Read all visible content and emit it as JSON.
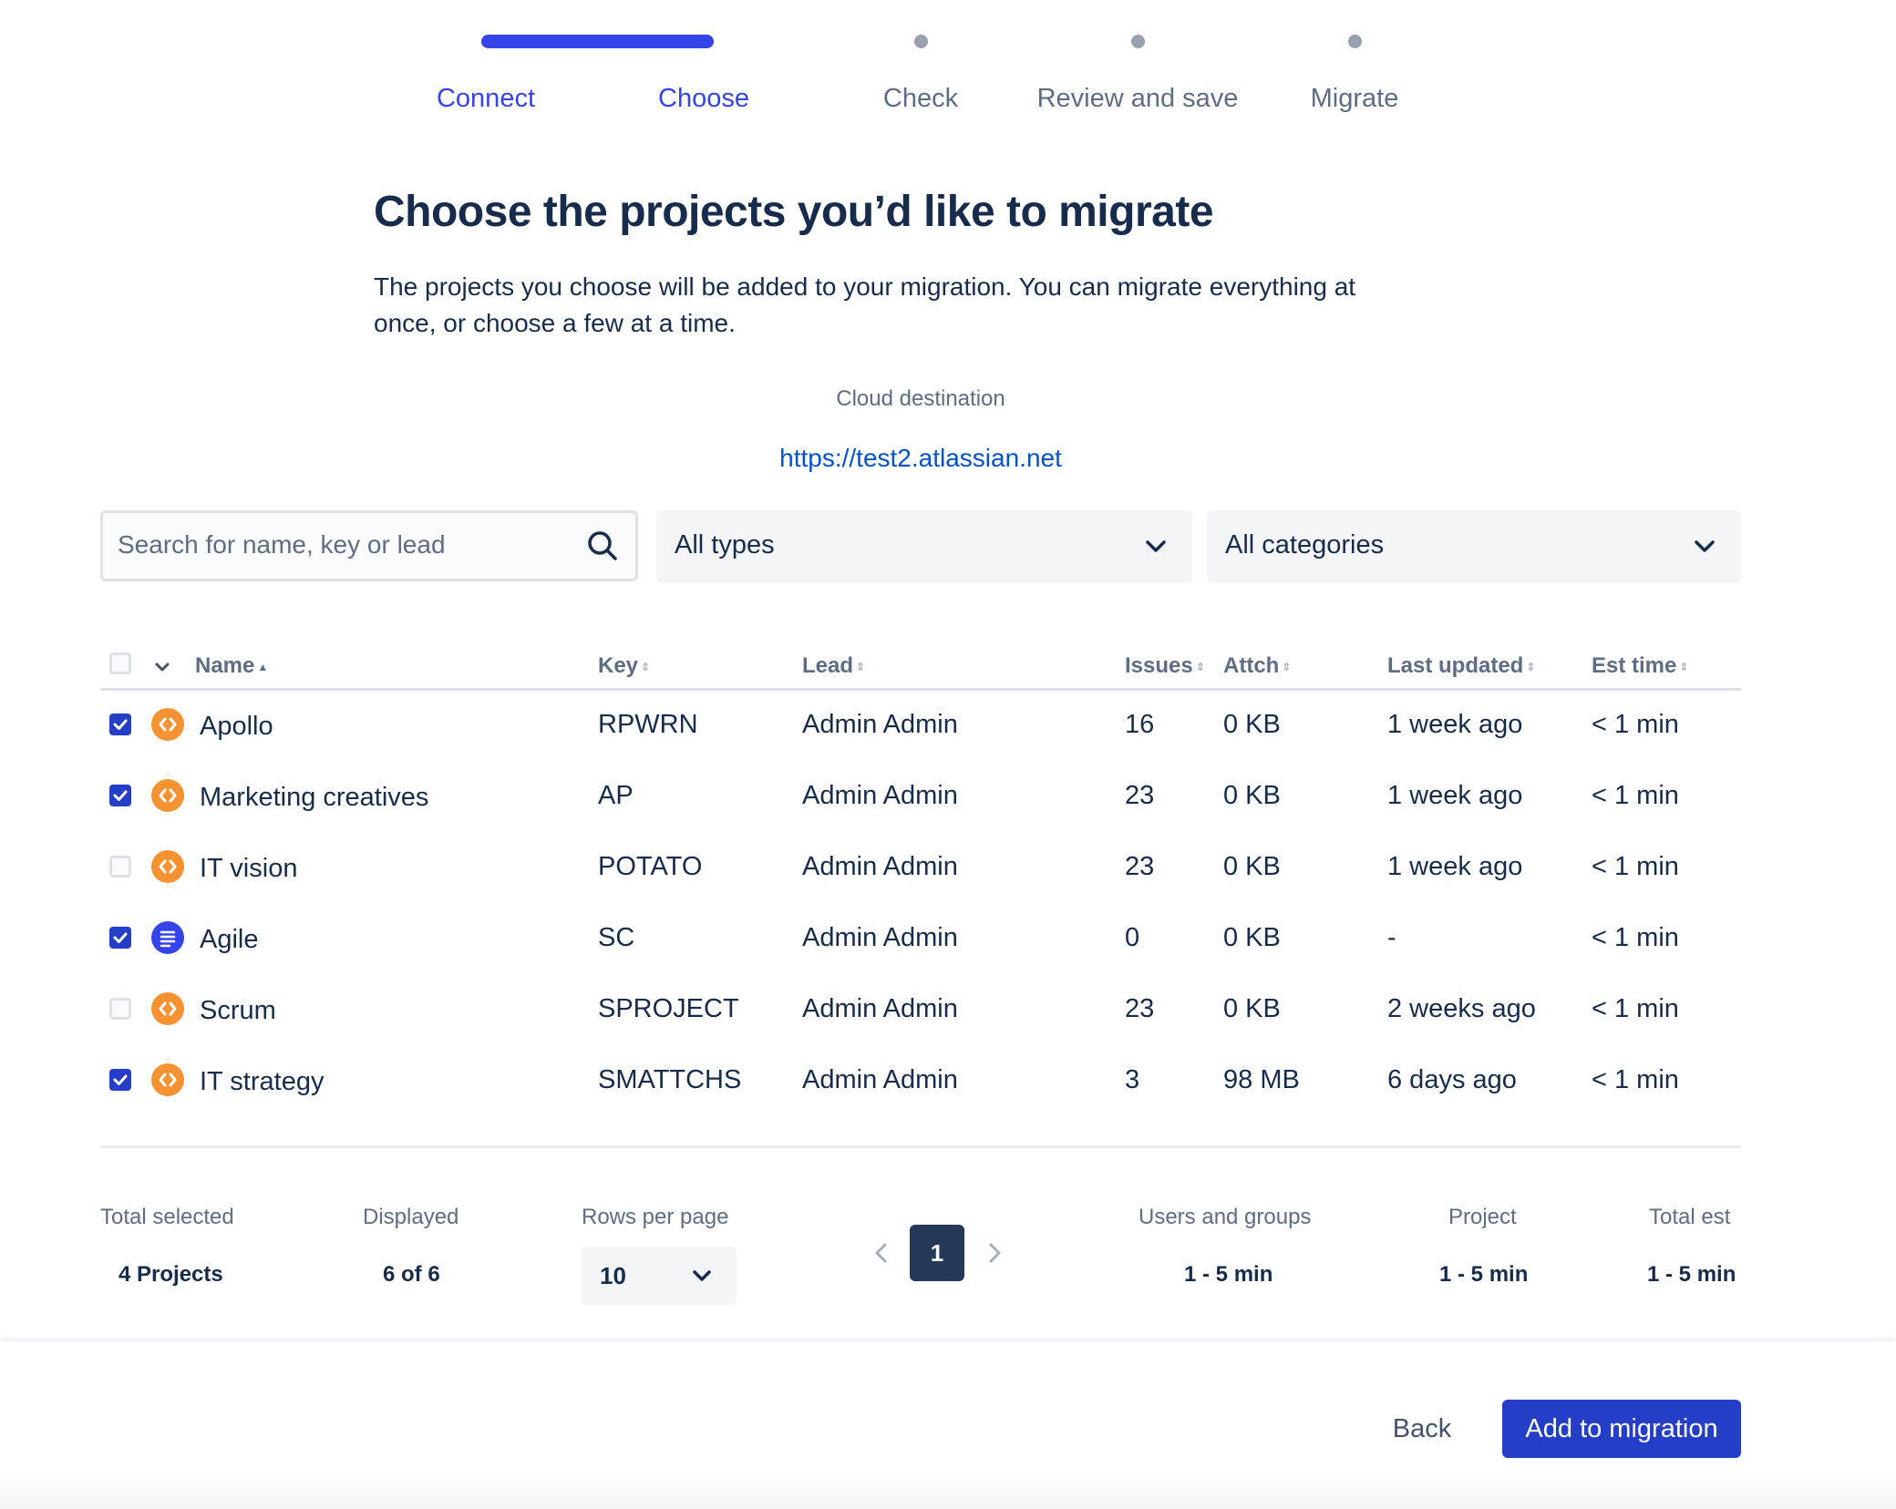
{
  "steps": [
    {
      "label": "Connect",
      "state": "done"
    },
    {
      "label": "Choose",
      "state": "current"
    },
    {
      "label": "Check",
      "state": "todo"
    },
    {
      "label": "Review and save",
      "state": "todo"
    },
    {
      "label": "Migrate",
      "state": "todo"
    }
  ],
  "page": {
    "title": "Choose the projects you’d like to migrate",
    "description": "The projects you choose will be added to your migration. You can migrate everything at once, or choose a few at a time.",
    "destination_label": "Cloud destination",
    "destination_url": "https://test2.atlassian.net"
  },
  "filters": {
    "search_placeholder": "Search for name, key or lead",
    "search_value": "",
    "type_selected": "All types",
    "category_selected": "All categories"
  },
  "table": {
    "columns": {
      "name": "Name",
      "key": "Key",
      "lead": "Lead",
      "issues": "Issues",
      "attch": "Attch",
      "last_updated": "Last updated",
      "est_time": "Est time"
    },
    "rows": [
      {
        "checked": true,
        "icon": "software-project-icon",
        "name": "Apollo",
        "key": "RPWRN",
        "lead": "Admin Admin",
        "issues": "16",
        "attch": "0 KB",
        "last_updated": "1 week ago",
        "est_time": "< 1 min"
      },
      {
        "checked": true,
        "icon": "software-project-icon",
        "name": "Marketing creatives",
        "key": "AP",
        "lead": "Admin Admin",
        "issues": "23",
        "attch": "0 KB",
        "last_updated": "1 week ago",
        "est_time": "< 1 min"
      },
      {
        "checked": false,
        "icon": "software-project-icon",
        "name": "IT vision",
        "key": "POTATO",
        "lead": "Admin Admin",
        "issues": "23",
        "attch": "0 KB",
        "last_updated": "1 week ago",
        "est_time": "< 1 min"
      },
      {
        "checked": true,
        "icon": "business-project-icon",
        "name": "Agile",
        "key": "SC",
        "lead": "Admin Admin",
        "issues": "0",
        "attch": "0 KB",
        "last_updated": "-",
        "est_time": "< 1 min"
      },
      {
        "checked": false,
        "icon": "software-project-icon",
        "name": "Scrum",
        "key": "SPROJECT",
        "lead": "Admin Admin",
        "issues": "23",
        "attch": "0 KB",
        "last_updated": "2 weeks ago",
        "est_time": "< 1 min"
      },
      {
        "checked": true,
        "icon": "software-project-icon",
        "name": "IT strategy",
        "key": "SMATTCHS",
        "lead": "Admin Admin",
        "issues": "3",
        "attch": "98 MB",
        "last_updated": "6 days ago",
        "est_time": "< 1 min"
      }
    ]
  },
  "footer": {
    "total_selected_label": "Total selected",
    "total_selected_value": "4 Projects",
    "displayed_label": "Displayed",
    "displayed_value": "6 of 6",
    "rows_per_page_label": "Rows per page",
    "rows_per_page_value": "10",
    "current_page": "1",
    "users_groups_label": "Users and groups",
    "users_groups_value": "1 - 5 min",
    "project_label": "Project",
    "project_value": "1 - 5 min",
    "total_est_label": "Total est",
    "total_est_value": "1 - 5 min"
  },
  "actions": {
    "back_label": "Back",
    "add_label": "Add to migration"
  },
  "colors": {
    "accent": "#3444E8",
    "primary_button": "#253EC8",
    "link": "#0052CC",
    "software_icon": "#F79232",
    "business_icon": "#3444E8"
  }
}
